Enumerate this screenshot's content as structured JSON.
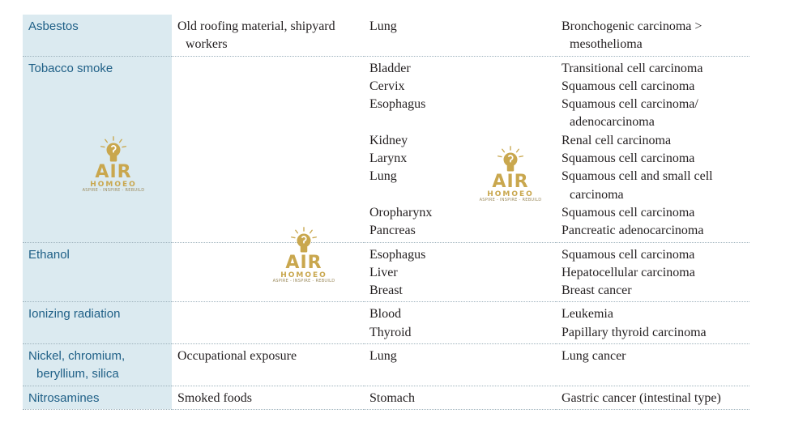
{
  "table": {
    "rows": [
      {
        "agent": [
          "Asbestos"
        ],
        "source": [
          "Old roofing material, shipyard",
          "workers"
        ],
        "organs": [
          "Lung"
        ],
        "cancers": [
          "Bronchogenic carcinoma >",
          "mesothelioma"
        ]
      },
      {
        "agent": [
          "Tobacco smoke"
        ],
        "source": [],
        "organs": [
          "Bladder",
          "Cervix",
          "Esophagus",
          "",
          "Kidney",
          "Larynx",
          "Lung",
          "",
          "Oropharynx",
          "Pancreas"
        ],
        "cancers": [
          "Transitional cell carcinoma",
          "Squamous cell carcinoma",
          "Squamous cell carcinoma/",
          "adenocarcinoma",
          "Renal cell carcinoma",
          "Squamous cell carcinoma",
          "Squamous cell and small cell",
          "carcinoma",
          "Squamous cell carcinoma",
          "Pancreatic adenocarcinoma"
        ]
      },
      {
        "agent": [
          "Ethanol"
        ],
        "source": [],
        "organs": [
          "Esophagus",
          "Liver",
          "Breast"
        ],
        "cancers": [
          "Squamous cell carcinoma",
          "Hepatocellular carcinoma",
          "Breast cancer"
        ]
      },
      {
        "agent": [
          "Ionizing radiation"
        ],
        "source": [],
        "organs": [
          "Blood",
          "Thyroid"
        ],
        "cancers": [
          "Leukemia",
          "Papillary thyroid carcinoma"
        ]
      },
      {
        "agent": [
          "Nickel, chromium,",
          "beryllium, silica"
        ],
        "source": [
          "Occupational exposure"
        ],
        "organs": [
          "Lung"
        ],
        "cancers": [
          "Lung cancer"
        ]
      },
      {
        "agent": [
          "Nitrosamines"
        ],
        "source": [
          "Smoked foods"
        ],
        "organs": [
          "Stomach"
        ],
        "cancers": [
          "Gastric cancer (intestinal type)"
        ]
      }
    ]
  },
  "watermark": {
    "brand": "AIR",
    "sub": "HOMOEO",
    "tagline": "ASPIRE - INSPIRE - REBUILD",
    "icon": "lightbulb-head-icon",
    "color": "#c9a74e"
  },
  "colors": {
    "agent_background": "#dbeaf0",
    "agent_text": "#1e5f86",
    "body_text": "#231f20"
  }
}
